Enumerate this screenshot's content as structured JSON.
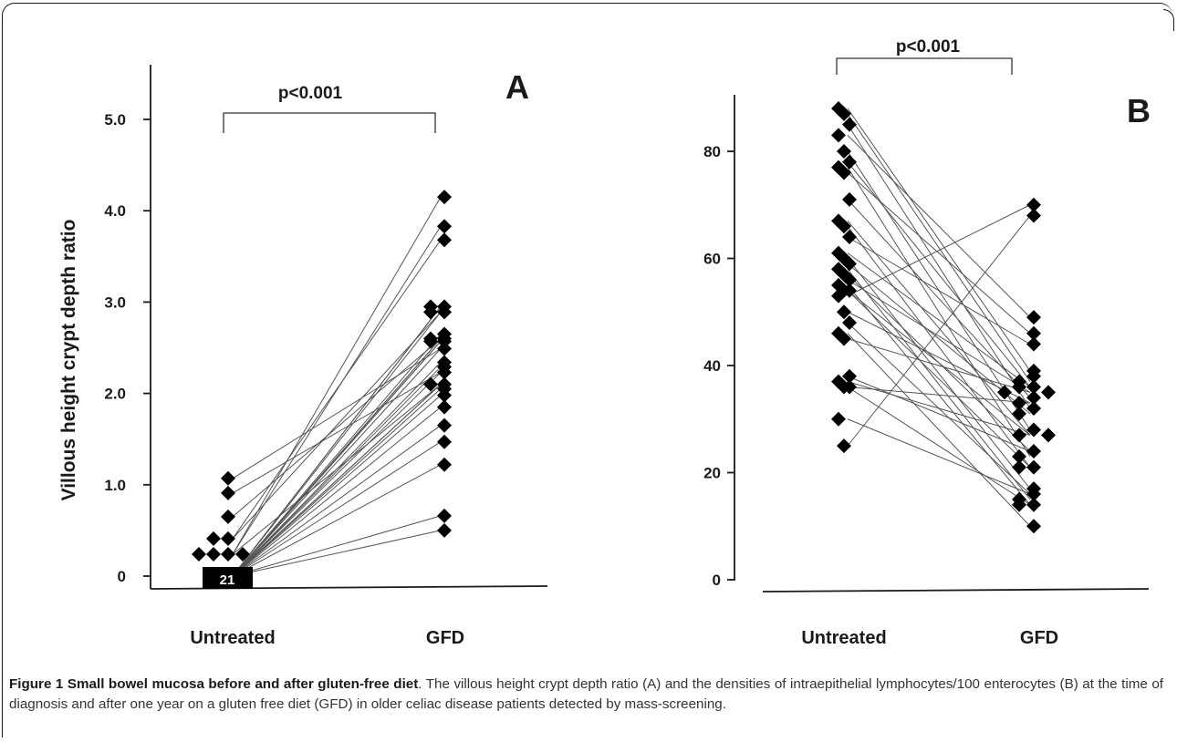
{
  "chart_data": [
    {
      "type": "scatter",
      "panel_label": "A",
      "ylabel": "Villous height crypt depth ratio",
      "yticks": [
        "0",
        "1.0",
        "2.0",
        "3.0",
        "4.0",
        "5.0"
      ],
      "ylim": [
        0,
        5.0
      ],
      "categories": [
        "Untreated",
        "GFD"
      ],
      "significance": "p<0.001",
      "box_label": "21",
      "untreated_points": [
        1.07,
        0.91,
        0.65,
        0.41,
        0.41,
        0.24,
        0.24,
        0.24,
        0.24
      ],
      "gfd_points": [
        4.15,
        3.83,
        3.68,
        2.95,
        2.95,
        2.89,
        2.89,
        2.65,
        2.6,
        2.6,
        2.57,
        2.57,
        2.49,
        2.34,
        2.29,
        2.23,
        2.1,
        2.1,
        2.05,
        1.98,
        1.85,
        1.65,
        1.47,
        1.22,
        0.66,
        0.5
      ],
      "pairs": [
        [
          0.0,
          2.95
        ],
        [
          0.0,
          2.95
        ],
        [
          0.0,
          2.89
        ],
        [
          0.0,
          2.65
        ],
        [
          0.0,
          2.6
        ],
        [
          0.0,
          2.6
        ],
        [
          0.0,
          2.57
        ],
        [
          0.0,
          2.57
        ],
        [
          0.0,
          2.49
        ],
        [
          0.0,
          2.34
        ],
        [
          0.0,
          2.29
        ],
        [
          0.0,
          2.23
        ],
        [
          0.0,
          2.1
        ],
        [
          0.0,
          2.1
        ],
        [
          0.0,
          2.05
        ],
        [
          0.0,
          1.98
        ],
        [
          0.0,
          1.85
        ],
        [
          0.0,
          1.65
        ],
        [
          0.0,
          1.47
        ],
        [
          0.0,
          1.22
        ],
        [
          0.0,
          0.66
        ],
        [
          0.0,
          0.5
        ],
        [
          0.24,
          4.15
        ],
        [
          0.24,
          3.83
        ],
        [
          0.41,
          3.68
        ],
        [
          0.41,
          2.89
        ],
        [
          0.65,
          2.6
        ],
        [
          0.91,
          2.23
        ],
        [
          1.07,
          2.49
        ],
        [
          0.24,
          2.1
        ]
      ]
    },
    {
      "type": "scatter",
      "panel_label": "B",
      "ylabel": "",
      "yticks": [
        "0",
        "20",
        "40",
        "60",
        "80"
      ],
      "ylim": [
        0,
        90
      ],
      "categories": [
        "Untreated",
        "GFD"
      ],
      "significance": "p<0.001",
      "untreated_points": [
        88,
        87,
        85,
        83,
        80,
        78,
        77,
        76,
        71,
        67,
        66,
        64,
        61,
        60,
        59,
        58,
        57,
        56,
        55,
        54,
        54,
        53,
        50,
        48,
        46,
        45,
        38,
        37,
        36,
        36,
        30,
        25
      ],
      "gfd_points": [
        70,
        68,
        49,
        46,
        44,
        39,
        38,
        37,
        36,
        36,
        35,
        35,
        34,
        33,
        32,
        31,
        28,
        27,
        27,
        24,
        23,
        21,
        21,
        17,
        16,
        15,
        14,
        14,
        10
      ],
      "pairs": [
        [
          88,
          39
        ],
        [
          87,
          37
        ],
        [
          85,
          32
        ],
        [
          83,
          49
        ],
        [
          80,
          28
        ],
        [
          78,
          36
        ],
        [
          77,
          23
        ],
        [
          76,
          46
        ],
        [
          71,
          34
        ],
        [
          67,
          27
        ],
        [
          66,
          21
        ],
        [
          64,
          44
        ],
        [
          61,
          36
        ],
        [
          60,
          17
        ],
        [
          59,
          31
        ],
        [
          58,
          15
        ],
        [
          57,
          24
        ],
        [
          56,
          35
        ],
        [
          55,
          14
        ],
        [
          54,
          27
        ],
        [
          54,
          21
        ],
        [
          53,
          70
        ],
        [
          50,
          33
        ],
        [
          48,
          16
        ],
        [
          46,
          10
        ],
        [
          45,
          35
        ],
        [
          38,
          24
        ],
        [
          37,
          27
        ],
        [
          36,
          14
        ],
        [
          36,
          33
        ],
        [
          30,
          16
        ],
        [
          25,
          68
        ]
      ]
    }
  ],
  "caption": {
    "title": "Figure 1 Small bowel mucosa before and after gluten-free diet",
    "text": ". The villous height crypt depth ratio (A) and the densities of intraepithelial lymphocytes/100 enterocytes (B) at the time of diagnosis and after one year on a gluten free diet (GFD) in older celiac disease patients detected by mass-screening."
  },
  "colors": {
    "marker": "#000000",
    "line": "#555555",
    "axis": "#1a1a1a",
    "caption_text": "#333333"
  }
}
